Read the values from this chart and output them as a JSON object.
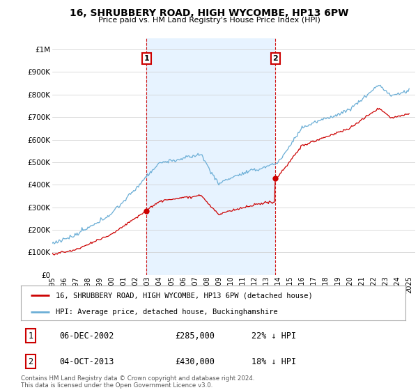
{
  "title": "16, SHRUBBERY ROAD, HIGH WYCOMBE, HP13 6PW",
  "subtitle": "Price paid vs. HM Land Registry's House Price Index (HPI)",
  "ytick_values": [
    0,
    100000,
    200000,
    300000,
    400000,
    500000,
    600000,
    700000,
    800000,
    900000,
    1000000
  ],
  "ylim": [
    0,
    1050000
  ],
  "xlim_start": 1995.0,
  "xlim_end": 2025.5,
  "hpi_color": "#6baed6",
  "price_color": "#cc0000",
  "shade_color": "#ddeeff",
  "transaction1": {
    "date_dec": 2002.92,
    "price": 285000,
    "label": "1",
    "date_str": "06-DEC-2002",
    "pct": "22% ↓ HPI"
  },
  "transaction2": {
    "date_dec": 2013.75,
    "price": 430000,
    "label": "2",
    "date_str": "04-OCT-2013",
    "pct": "18% ↓ HPI"
  },
  "legend_price_label": "16, SHRUBBERY ROAD, HIGH WYCOMBE, HP13 6PW (detached house)",
  "legend_hpi_label": "HPI: Average price, detached house, Buckinghamshire",
  "table_row1": [
    "1",
    "06-DEC-2002",
    "£285,000",
    "22% ↓ HPI"
  ],
  "table_row2": [
    "2",
    "04-OCT-2013",
    "£430,000",
    "18% ↓ HPI"
  ],
  "footnote": "Contains HM Land Registry data © Crown copyright and database right 2024.\nThis data is licensed under the Open Government Licence v3.0.",
  "background_color": "#ffffff",
  "grid_color": "#cccccc"
}
